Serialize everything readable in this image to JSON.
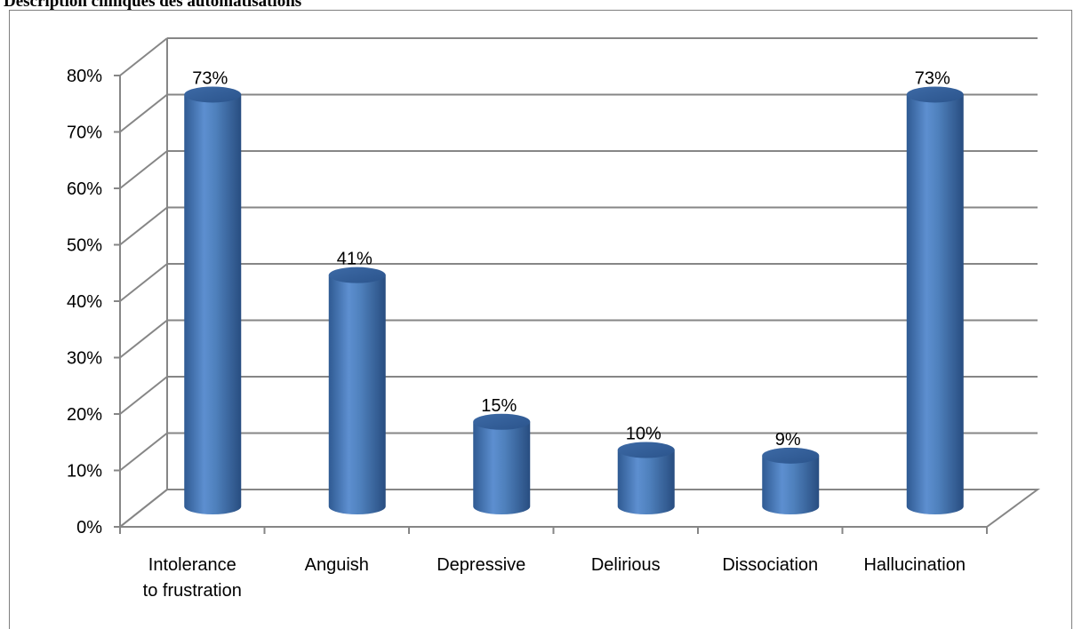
{
  "caption": "Description cliniques des automatisations",
  "chart_data": {
    "type": "bar",
    "style": "3d-cylinder",
    "title": "",
    "xlabel": "",
    "ylabel": "",
    "categories": [
      "Intolerance to frustration",
      "Anguish",
      "Depressive",
      "Delirious",
      "Dissociation",
      "Hallucination"
    ],
    "category_lines": [
      [
        "Intolerance",
        "to frustration"
      ],
      [
        "Anguish"
      ],
      [
        "Depressive"
      ],
      [
        "Delirious"
      ],
      [
        "Dissociation"
      ],
      [
        "Hallucination"
      ]
    ],
    "values": [
      73,
      41,
      15,
      10,
      9,
      73
    ],
    "data_labels": [
      "73%",
      "41%",
      "15%",
      "10%",
      "9%",
      "73%"
    ],
    "ylim": [
      0,
      80
    ],
    "yticks": [
      0,
      10,
      20,
      30,
      40,
      50,
      60,
      70,
      80
    ],
    "ytick_labels": [
      "0%",
      "10%",
      "20%",
      "30%",
      "40%",
      "50%",
      "60%",
      "70%",
      "80%"
    ],
    "grid": true,
    "legend": "none",
    "bar_color": "#4f81bd",
    "grid_color": "#868686"
  }
}
